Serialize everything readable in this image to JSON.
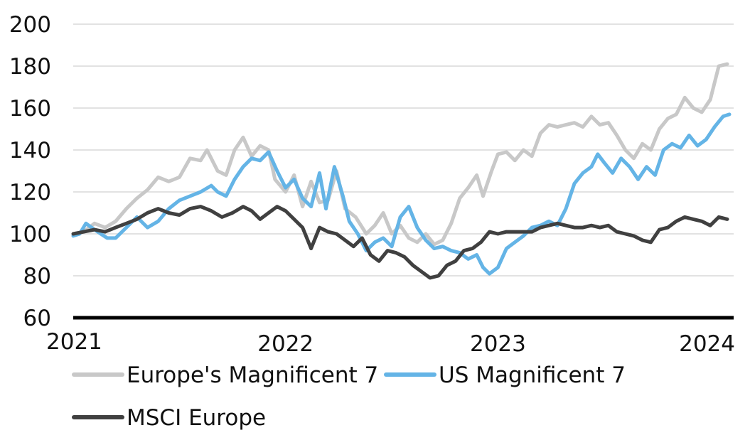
{
  "chart_data": {
    "type": "line",
    "ylim": [
      60,
      200
    ],
    "yticks": [
      60,
      80,
      100,
      120,
      140,
      160,
      180,
      200
    ],
    "x_tick_labels": [
      "2021",
      "2022",
      "2023",
      "2024"
    ],
    "xlim": [
      2021.0,
      2024.11
    ],
    "grid": "horizontal",
    "legend_position": "bottom",
    "series": [
      {
        "name": "Europe's Magnificent 7",
        "color": "#c8c8c8",
        "points": [
          [
            2021.0,
            100
          ],
          [
            2021.05,
            101
          ],
          [
            2021.1,
            105
          ],
          [
            2021.15,
            103
          ],
          [
            2021.2,
            106
          ],
          [
            2021.25,
            112
          ],
          [
            2021.3,
            117
          ],
          [
            2021.35,
            121
          ],
          [
            2021.4,
            127
          ],
          [
            2021.45,
            125
          ],
          [
            2021.5,
            127
          ],
          [
            2021.55,
            136
          ],
          [
            2021.6,
            135
          ],
          [
            2021.63,
            140
          ],
          [
            2021.68,
            130
          ],
          [
            2021.72,
            128
          ],
          [
            2021.76,
            140
          ],
          [
            2021.8,
            146
          ],
          [
            2021.84,
            137
          ],
          [
            2021.88,
            142
          ],
          [
            2021.92,
            140
          ],
          [
            2021.95,
            126
          ],
          [
            2022.0,
            120
          ],
          [
            2022.04,
            128
          ],
          [
            2022.08,
            113
          ],
          [
            2022.12,
            125
          ],
          [
            2022.16,
            115
          ],
          [
            2022.2,
            116
          ],
          [
            2022.24,
            130
          ],
          [
            2022.28,
            112
          ],
          [
            2022.33,
            108
          ],
          [
            2022.38,
            100
          ],
          [
            2022.42,
            104
          ],
          [
            2022.46,
            110
          ],
          [
            2022.5,
            100
          ],
          [
            2022.54,
            104
          ],
          [
            2022.58,
            98
          ],
          [
            2022.62,
            96
          ],
          [
            2022.66,
            100
          ],
          [
            2022.7,
            95
          ],
          [
            2022.74,
            97
          ],
          [
            2022.78,
            105
          ],
          [
            2022.82,
            117
          ],
          [
            2022.86,
            122
          ],
          [
            2022.9,
            128
          ],
          [
            2022.93,
            118
          ],
          [
            2022.97,
            130
          ],
          [
            2023.0,
            138
          ],
          [
            2023.04,
            139
          ],
          [
            2023.08,
            135
          ],
          [
            2023.12,
            140
          ],
          [
            2023.16,
            137
          ],
          [
            2023.2,
            148
          ],
          [
            2023.24,
            152
          ],
          [
            2023.28,
            151
          ],
          [
            2023.32,
            152
          ],
          [
            2023.36,
            153
          ],
          [
            2023.4,
            151
          ],
          [
            2023.44,
            156
          ],
          [
            2023.48,
            152
          ],
          [
            2023.52,
            153
          ],
          [
            2023.56,
            147
          ],
          [
            2023.6,
            140
          ],
          [
            2023.64,
            136
          ],
          [
            2023.68,
            143
          ],
          [
            2023.72,
            140
          ],
          [
            2023.76,
            150
          ],
          [
            2023.8,
            155
          ],
          [
            2023.84,
            157
          ],
          [
            2023.88,
            165
          ],
          [
            2023.92,
            160
          ],
          [
            2023.96,
            158
          ],
          [
            2024.0,
            164
          ],
          [
            2024.04,
            180
          ],
          [
            2024.08,
            181
          ]
        ]
      },
      {
        "name": "US Magnificent 7",
        "color": "#64b4e6",
        "points": [
          [
            2021.0,
            99
          ],
          [
            2021.03,
            100
          ],
          [
            2021.06,
            105
          ],
          [
            2021.1,
            102
          ],
          [
            2021.13,
            100
          ],
          [
            2021.16,
            98
          ],
          [
            2021.2,
            98
          ],
          [
            2021.25,
            103
          ],
          [
            2021.3,
            108
          ],
          [
            2021.35,
            103
          ],
          [
            2021.4,
            106
          ],
          [
            2021.45,
            112
          ],
          [
            2021.5,
            116
          ],
          [
            2021.55,
            118
          ],
          [
            2021.6,
            120
          ],
          [
            2021.65,
            123
          ],
          [
            2021.68,
            120
          ],
          [
            2021.72,
            118
          ],
          [
            2021.76,
            126
          ],
          [
            2021.8,
            132
          ],
          [
            2021.84,
            136
          ],
          [
            2021.88,
            135
          ],
          [
            2021.92,
            139
          ],
          [
            2021.96,
            130
          ],
          [
            2022.0,
            122
          ],
          [
            2022.04,
            126
          ],
          [
            2022.08,
            117
          ],
          [
            2022.12,
            113
          ],
          [
            2022.16,
            129
          ],
          [
            2022.19,
            112
          ],
          [
            2022.23,
            132
          ],
          [
            2022.27,
            118
          ],
          [
            2022.3,
            106
          ],
          [
            2022.34,
            100
          ],
          [
            2022.38,
            92
          ],
          [
            2022.42,
            96
          ],
          [
            2022.46,
            98
          ],
          [
            2022.5,
            94
          ],
          [
            2022.54,
            108
          ],
          [
            2022.58,
            113
          ],
          [
            2022.62,
            103
          ],
          [
            2022.66,
            97
          ],
          [
            2022.7,
            93
          ],
          [
            2022.74,
            94
          ],
          [
            2022.78,
            92
          ],
          [
            2022.82,
            91
          ],
          [
            2022.86,
            88
          ],
          [
            2022.9,
            90
          ],
          [
            2022.93,
            84
          ],
          [
            2022.96,
            81
          ],
          [
            2023.0,
            84
          ],
          [
            2023.04,
            93
          ],
          [
            2023.08,
            96
          ],
          [
            2023.12,
            99
          ],
          [
            2023.16,
            103
          ],
          [
            2023.2,
            104
          ],
          [
            2023.24,
            106
          ],
          [
            2023.28,
            104
          ],
          [
            2023.32,
            112
          ],
          [
            2023.36,
            124
          ],
          [
            2023.4,
            129
          ],
          [
            2023.44,
            132
          ],
          [
            2023.47,
            138
          ],
          [
            2023.5,
            134
          ],
          [
            2023.54,
            129
          ],
          [
            2023.58,
            136
          ],
          [
            2023.62,
            132
          ],
          [
            2023.66,
            126
          ],
          [
            2023.7,
            132
          ],
          [
            2023.74,
            128
          ],
          [
            2023.78,
            140
          ],
          [
            2023.82,
            143
          ],
          [
            2023.86,
            141
          ],
          [
            2023.9,
            147
          ],
          [
            2023.94,
            142
          ],
          [
            2023.98,
            145
          ],
          [
            2024.02,
            151
          ],
          [
            2024.06,
            156
          ],
          [
            2024.09,
            157
          ]
        ]
      },
      {
        "name": "MSCI Europe",
        "color": "#404040",
        "points": [
          [
            2021.0,
            100
          ],
          [
            2021.05,
            101
          ],
          [
            2021.1,
            102
          ],
          [
            2021.15,
            101
          ],
          [
            2021.2,
            103
          ],
          [
            2021.25,
            105
          ],
          [
            2021.3,
            107
          ],
          [
            2021.35,
            110
          ],
          [
            2021.4,
            112
          ],
          [
            2021.45,
            110
          ],
          [
            2021.5,
            109
          ],
          [
            2021.55,
            112
          ],
          [
            2021.6,
            113
          ],
          [
            2021.65,
            111
          ],
          [
            2021.7,
            108
          ],
          [
            2021.75,
            110
          ],
          [
            2021.8,
            113
          ],
          [
            2021.84,
            111
          ],
          [
            2021.88,
            107
          ],
          [
            2021.92,
            110
          ],
          [
            2021.96,
            113
          ],
          [
            2022.0,
            111
          ],
          [
            2022.04,
            107
          ],
          [
            2022.08,
            103
          ],
          [
            2022.12,
            93
          ],
          [
            2022.16,
            103
          ],
          [
            2022.2,
            101
          ],
          [
            2022.24,
            100
          ],
          [
            2022.28,
            97
          ],
          [
            2022.32,
            94
          ],
          [
            2022.36,
            98
          ],
          [
            2022.4,
            90
          ],
          [
            2022.44,
            87
          ],
          [
            2022.48,
            92
          ],
          [
            2022.52,
            91
          ],
          [
            2022.56,
            89
          ],
          [
            2022.6,
            85
          ],
          [
            2022.64,
            82
          ],
          [
            2022.68,
            79
          ],
          [
            2022.72,
            80
          ],
          [
            2022.76,
            85
          ],
          [
            2022.8,
            87
          ],
          [
            2022.84,
            92
          ],
          [
            2022.88,
            93
          ],
          [
            2022.92,
            96
          ],
          [
            2022.96,
            101
          ],
          [
            2023.0,
            100
          ],
          [
            2023.04,
            101
          ],
          [
            2023.08,
            101
          ],
          [
            2023.12,
            101
          ],
          [
            2023.16,
            101
          ],
          [
            2023.2,
            103
          ],
          [
            2023.24,
            104
          ],
          [
            2023.28,
            105
          ],
          [
            2023.32,
            104
          ],
          [
            2023.36,
            103
          ],
          [
            2023.4,
            103
          ],
          [
            2023.44,
            104
          ],
          [
            2023.48,
            103
          ],
          [
            2023.52,
            104
          ],
          [
            2023.56,
            101
          ],
          [
            2023.6,
            100
          ],
          [
            2023.64,
            99
          ],
          [
            2023.68,
            97
          ],
          [
            2023.72,
            96
          ],
          [
            2023.76,
            102
          ],
          [
            2023.8,
            103
          ],
          [
            2023.84,
            106
          ],
          [
            2023.88,
            108
          ],
          [
            2023.92,
            107
          ],
          [
            2023.96,
            106
          ],
          [
            2024.0,
            104
          ],
          [
            2024.04,
            108
          ],
          [
            2024.08,
            107
          ]
        ]
      }
    ]
  }
}
